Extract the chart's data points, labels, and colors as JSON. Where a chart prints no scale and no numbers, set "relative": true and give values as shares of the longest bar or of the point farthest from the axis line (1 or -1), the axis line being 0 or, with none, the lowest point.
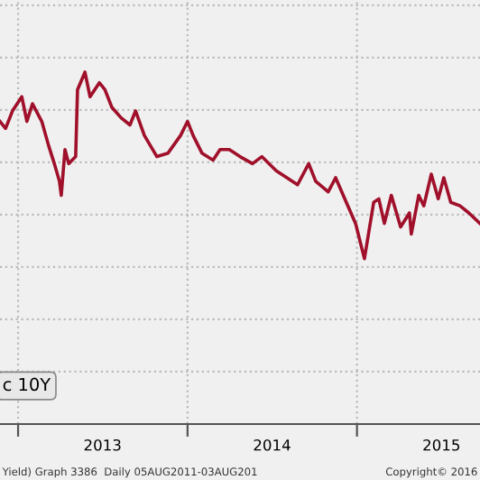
{
  "chart_data": {
    "type": "line",
    "relative": true,
    "grid": true,
    "xlim": [
      "2012-11-23",
      "2015-09-23"
    ],
    "xticks": [
      {
        "value": "2013-01-01",
        "label": null
      },
      {
        "value": "2013-07-02",
        "label": "2013"
      },
      {
        "value": "2014-01-01",
        "label": null
      },
      {
        "value": "2014-07-02",
        "label": "2014"
      },
      {
        "value": "2015-01-01",
        "label": null
      },
      {
        "value": "2015-07-02",
        "label": "2015"
      }
    ],
    "annotations": [
      "c 10Y",
      "Yield) Graph 3386  Daily 05AUG2011-03AUG201",
      "Copyright© 2016"
    ],
    "series": [
      {
        "color": "#a0102a",
        "x": [
          "2012-11-23",
          "2012-12-05",
          "2012-12-20",
          "2013-01-09",
          "2013-01-20",
          "2013-02-01",
          "2013-02-21",
          "2013-03-08",
          "2013-03-20",
          "2013-03-31",
          "2013-04-04",
          "2013-04-12",
          "2013-04-20",
          "2013-05-05",
          "2013-05-09",
          "2013-05-25",
          "2013-06-05",
          "2013-06-25",
          "2013-07-07",
          "2013-07-22",
          "2013-08-11",
          "2013-08-30",
          "2013-09-11",
          "2013-09-30",
          "2013-10-27",
          "2013-11-20",
          "2013-12-17",
          "2014-01-01",
          "2014-01-13",
          "2014-02-01",
          "2014-02-25",
          "2014-03-12",
          "2014-04-01",
          "2014-04-24",
          "2014-05-21",
          "2014-06-10",
          "2014-07-11",
          "2014-08-26",
          "2014-09-19",
          "2014-10-04",
          "2014-10-31",
          "2014-11-16",
          "2014-12-09",
          "2014-12-29",
          "2015-01-17",
          "2015-02-06",
          "2015-02-17",
          "2015-03-01",
          "2015-03-16",
          "2015-04-05",
          "2015-04-24",
          "2015-04-28",
          "2015-05-14",
          "2015-05-25",
          "2015-06-10",
          "2015-06-25",
          "2015-07-07",
          "2015-07-22",
          "2015-08-11",
          "2015-08-30",
          "2015-09-23"
        ],
        "values": [
          0.86,
          0.84,
          0.89,
          0.93,
          0.86,
          0.91,
          0.86,
          0.79,
          0.74,
          0.69,
          0.65,
          0.78,
          0.74,
          0.76,
          0.95,
          1,
          0.93,
          0.97,
          0.95,
          0.9,
          0.87,
          0.85,
          0.89,
          0.82,
          0.76,
          0.77,
          0.82,
          0.86,
          0.82,
          0.77,
          0.75,
          0.78,
          0.78,
          0.76,
          0.74,
          0.76,
          0.72,
          0.68,
          0.74,
          0.69,
          0.66,
          0.7,
          0.63,
          0.57,
          0.47,
          0.63,
          0.64,
          0.57,
          0.65,
          0.56,
          0.6,
          0.54,
          0.65,
          0.62,
          0.71,
          0.64,
          0.7,
          0.63,
          0.62,
          0.6,
          0.57
        ]
      }
    ]
  }
}
